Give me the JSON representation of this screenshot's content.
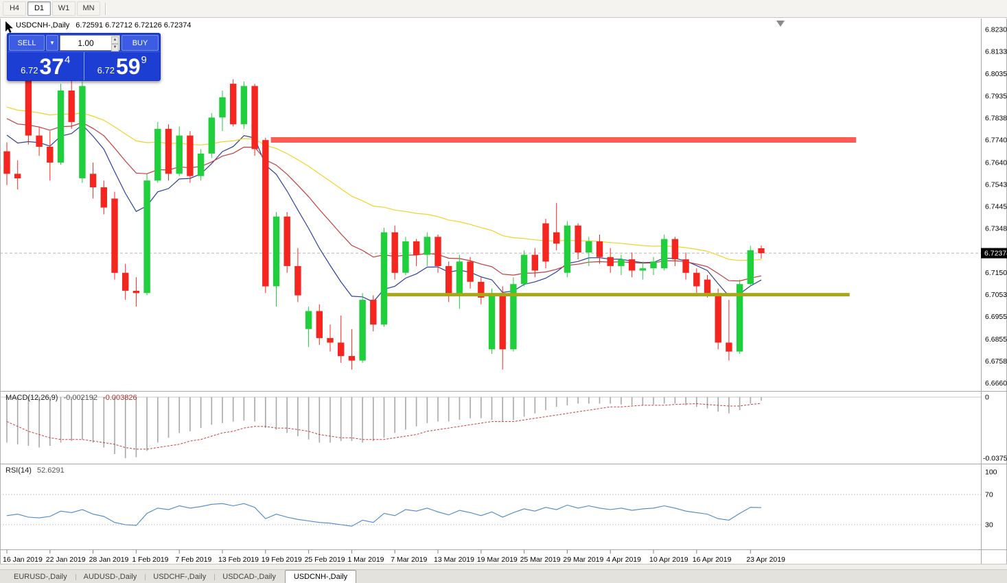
{
  "colors": {
    "bull": "#1fcf3c",
    "bear": "#f5261f",
    "ma_fast": "#2b3f9e",
    "ma_mid": "#c03a3a",
    "ma_slow": "#f0d327",
    "resistance": "#ff5b55",
    "support": "#a8a814",
    "macd_bar": "#a8a8a8",
    "macd_signal": "#cc3b3b",
    "rsi_line": "#4a86c8",
    "panel_blue": "#1d3ed2",
    "badge_bg": "#000000"
  },
  "toolbar": {
    "timeframes": [
      {
        "label": "H4",
        "active": false
      },
      {
        "label": "D1",
        "active": true
      },
      {
        "label": "W1",
        "active": false
      },
      {
        "label": "MN",
        "active": false
      }
    ]
  },
  "header": {
    "symbol": "USDCNH-,Daily",
    "ohlc_text": "6.72591 6.72712 6.72126 6.72374"
  },
  "trade_panel": {
    "sell_label": "SELL",
    "buy_label": "BUY",
    "volume": "1.00",
    "sell_price": {
      "prefix": "6.72",
      "main": "37",
      "pip": "4"
    },
    "buy_price": {
      "prefix": "6.72",
      "main": "59",
      "pip": "9"
    }
  },
  "bottom_tabs": [
    {
      "label": "EURUSD-,Daily",
      "active": false
    },
    {
      "label": "AUDUSD-,Daily",
      "active": false
    },
    {
      "label": "USDCHF-,Daily",
      "active": false
    },
    {
      "label": "USDCAD-,Daily",
      "active": false
    },
    {
      "label": "USDCNH-,Daily",
      "active": true
    }
  ],
  "chart_data": {
    "type": "candlestick",
    "symbol": "USDCNH-",
    "timeframe": "Daily",
    "title": "USDCNH-,Daily",
    "last_ohlc": {
      "open": 6.72591,
      "high": 6.72712,
      "low": 6.72126,
      "close": 6.72374
    },
    "current_price": 6.72374,
    "price_axis_current": "6.72374",
    "y_range": {
      "top": 6.828,
      "bottom": 6.6625
    },
    "price_axis_ticks": [
      "6.82305",
      "6.81330",
      "6.80350",
      "6.79355",
      "6.78380",
      "6.77405",
      "6.76405",
      "6.75430",
      "6.74455",
      "6.73480",
      "6.71505",
      "6.70530",
      "6.69555",
      "6.68555",
      "6.67580",
      "6.66605"
    ],
    "dates": [
      "2019-01-16",
      "2019-01-17",
      "2019-01-18",
      "2019-01-21",
      "2019-01-22",
      "2019-01-23",
      "2019-01-24",
      "2019-01-25",
      "2019-01-28",
      "2019-01-29",
      "2019-01-30",
      "2019-01-31",
      "2019-02-01",
      "2019-02-04",
      "2019-02-05",
      "2019-02-06",
      "2019-02-07",
      "2019-02-08",
      "2019-02-11",
      "2019-02-12",
      "2019-02-13",
      "2019-02-14",
      "2019-02-15",
      "2019-02-18",
      "2019-02-19",
      "2019-02-20",
      "2019-02-21",
      "2019-02-22",
      "2019-02-25",
      "2019-02-26",
      "2019-02-27",
      "2019-02-28",
      "2019-03-01",
      "2019-03-04",
      "2019-03-05",
      "2019-03-06",
      "2019-03-07",
      "2019-03-08",
      "2019-03-11",
      "2019-03-12",
      "2019-03-13",
      "2019-03-14",
      "2019-03-15",
      "2019-03-18",
      "2019-03-19",
      "2019-03-20",
      "2019-03-21",
      "2019-03-22",
      "2019-03-25",
      "2019-03-26",
      "2019-03-27",
      "2019-03-28",
      "2019-03-29",
      "2019-04-01",
      "2019-04-02",
      "2019-04-03",
      "2019-04-04",
      "2019-04-05",
      "2019-04-08",
      "2019-04-09",
      "2019-04-10",
      "2019-04-11",
      "2019-04-12",
      "2019-04-15",
      "2019-04-16",
      "2019-04-17",
      "2019-04-18",
      "2019-04-19",
      "2019-04-22",
      "2019-04-23",
      "2019-04-24"
    ],
    "candles": [
      [
        6.769,
        6.773,
        6.754,
        6.759
      ],
      [
        6.759,
        6.765,
        6.752,
        6.757
      ],
      [
        6.801,
        6.803,
        6.772,
        6.776
      ],
      [
        6.776,
        6.78,
        6.767,
        6.771
      ],
      [
        6.771,
        6.778,
        6.756,
        6.764
      ],
      [
        6.764,
        6.799,
        6.763,
        6.796
      ],
      [
        6.796,
        6.801,
        6.779,
        6.782
      ],
      [
        6.757,
        6.8,
        6.755,
        6.798
      ],
      [
        6.759,
        6.764,
        6.748,
        6.753
      ],
      [
        6.753,
        6.756,
        6.741,
        6.744
      ],
      [
        6.748,
        6.751,
        6.712,
        6.715
      ],
      [
        6.715,
        6.719,
        6.703,
        6.707
      ],
      [
        6.707,
        6.713,
        6.7,
        6.706
      ],
      [
        6.706,
        6.759,
        6.705,
        6.756
      ],
      [
        6.756,
        6.782,
        6.755,
        6.779
      ],
      [
        6.779,
        6.781,
        6.756,
        6.759
      ],
      [
        6.759,
        6.78,
        6.758,
        6.776
      ],
      [
        6.776,
        6.778,
        6.755,
        6.758
      ],
      [
        6.758,
        6.77,
        6.756,
        6.768
      ],
      [
        6.768,
        6.786,
        6.766,
        6.784
      ],
      [
        6.784,
        6.796,
        6.778,
        6.793
      ],
      [
        6.799,
        6.801,
        6.78,
        6.781
      ],
      [
        6.781,
        6.8,
        6.779,
        6.798
      ],
      [
        6.798,
        6.799,
        6.767,
        6.77
      ],
      [
        6.774,
        6.775,
        6.706,
        6.709
      ],
      [
        6.709,
        6.742,
        6.7,
        6.74
      ],
      [
        6.74,
        6.742,
        6.715,
        6.718
      ],
      [
        6.718,
        6.726,
        6.702,
        6.705
      ],
      [
        6.69,
        6.7,
        6.682,
        6.698
      ],
      [
        6.698,
        6.701,
        6.683,
        6.686
      ],
      [
        6.686,
        6.692,
        6.68,
        6.684
      ],
      [
        6.684,
        6.696,
        6.675,
        6.678
      ],
      [
        6.678,
        6.69,
        6.672,
        6.676
      ],
      [
        6.676,
        6.706,
        6.675,
        6.703
      ],
      [
        6.703,
        6.705,
        6.689,
        6.692
      ],
      [
        6.692,
        6.735,
        6.691,
        6.733
      ],
      [
        6.733,
        6.736,
        6.712,
        6.715
      ],
      [
        6.715,
        6.731,
        6.714,
        6.729
      ],
      [
        6.729,
        6.73,
        6.718,
        6.723
      ],
      [
        6.723,
        6.733,
        6.718,
        6.731
      ],
      [
        6.731,
        6.732,
        6.715,
        6.718
      ],
      [
        6.718,
        6.72,
        6.702,
        6.705
      ],
      [
        6.705,
        6.723,
        6.699,
        6.72
      ],
      [
        6.72,
        6.722,
        6.708,
        6.711
      ],
      [
        6.711,
        6.713,
        6.701,
        6.704
      ],
      [
        6.681,
        6.708,
        6.679,
        6.706
      ],
      [
        6.706,
        6.709,
        6.672,
        6.681
      ],
      [
        6.681,
        6.713,
        6.68,
        6.71
      ],
      [
        6.71,
        6.725,
        6.709,
        6.723
      ],
      [
        6.723,
        6.726,
        6.713,
        6.716
      ],
      [
        6.737,
        6.739,
        6.717,
        6.72
      ],
      [
        6.733,
        6.746,
        6.725,
        6.728
      ],
      [
        6.715,
        6.738,
        6.713,
        6.736
      ],
      [
        6.736,
        6.737,
        6.721,
        6.724
      ],
      [
        6.724,
        6.731,
        6.718,
        6.729
      ],
      [
        6.729,
        6.732,
        6.719,
        6.722
      ],
      [
        6.722,
        6.726,
        6.715,
        6.718
      ],
      [
        6.718,
        6.723,
        6.714,
        6.721
      ],
      [
        6.721,
        6.724,
        6.713,
        6.716
      ],
      [
        6.716,
        6.72,
        6.712,
        6.717
      ],
      [
        6.717,
        6.722,
        6.714,
        6.72
      ],
      [
        6.717,
        6.732,
        6.716,
        6.73
      ],
      [
        6.73,
        6.731,
        6.718,
        6.721
      ],
      [
        6.721,
        6.724,
        6.712,
        6.715
      ],
      [
        6.715,
        6.717,
        6.706,
        6.709
      ],
      [
        6.712,
        6.714,
        6.704,
        6.706
      ],
      [
        6.706,
        6.708,
        6.681,
        6.684
      ],
      [
        6.684,
        6.703,
        6.676,
        6.68
      ],
      [
        6.68,
        6.712,
        6.679,
        6.71
      ],
      [
        6.71,
        6.727,
        6.709,
        6.725
      ],
      [
        6.72591,
        6.72712,
        6.72126,
        6.72374
      ]
    ],
    "x_axis_labels": [
      {
        "index": 0,
        "label": "16 Jan 2019"
      },
      {
        "index": 4,
        "label": "22 Jan 2019"
      },
      {
        "index": 8,
        "label": "28 Jan 2019"
      },
      {
        "index": 12,
        "label": "1 Feb 2019"
      },
      {
        "index": 16,
        "label": "7 Feb 2019"
      },
      {
        "index": 20,
        "label": "13 Feb 2019"
      },
      {
        "index": 24,
        "label": "19 Feb 2019"
      },
      {
        "index": 28,
        "label": "25 Feb 2019"
      },
      {
        "index": 32,
        "label": "1 Mar 2019"
      },
      {
        "index": 36,
        "label": "7 Mar 2019"
      },
      {
        "index": 40,
        "label": "13 Mar 2019"
      },
      {
        "index": 44,
        "label": "19 Mar 2019"
      },
      {
        "index": 48,
        "label": "25 Mar 2019"
      },
      {
        "index": 52,
        "label": "29 Mar 2019"
      },
      {
        "index": 56,
        "label": "4 Apr 2019"
      },
      {
        "index": 60,
        "label": "10 Apr 2019"
      },
      {
        "index": 64,
        "label": "16 Apr 2019"
      },
      {
        "index": 69,
        "label": "23 Apr 2019"
      }
    ],
    "moving_averages": [
      {
        "name": "ma-fast-blue",
        "period": 10,
        "seed": 6.78,
        "color": "#2b3f9e"
      },
      {
        "name": "ma-mid-red",
        "period": 21,
        "seed": 6.786,
        "color": "#c03a3a"
      },
      {
        "name": "ma-slow-yellow",
        "period": 45,
        "seed": 6.79,
        "color": "#f0d327"
      }
    ],
    "hlines": [
      {
        "name": "resistance",
        "price": 6.77405,
        "from_index": 24.5,
        "to_index": 78.8,
        "color": "#ff5b55",
        "width": 8
      },
      {
        "name": "support",
        "price": 6.7053,
        "from_index": 35.3,
        "to_index": 78.2,
        "color": "#a8a814",
        "width": 5
      }
    ],
    "macd": {
      "name": "MACD(12,26,9)",
      "value": "-0.002192",
      "signal_value": "-0.003826",
      "axis_zero_label": "0",
      "axis_min_label": "-0.037529",
      "min": -0.037529,
      "hist": [
        -0.028,
        -0.029,
        -0.03,
        -0.031,
        -0.03,
        -0.028,
        -0.027,
        -0.026,
        -0.028,
        -0.031,
        -0.035,
        -0.0375,
        -0.037,
        -0.033,
        -0.028,
        -0.025,
        -0.022,
        -0.021,
        -0.019,
        -0.017,
        -0.016,
        -0.015,
        -0.0145,
        -0.015,
        -0.019,
        -0.02,
        -0.022,
        -0.024,
        -0.026,
        -0.028,
        -0.028,
        -0.027,
        -0.027,
        -0.028,
        -0.027,
        -0.025,
        -0.022,
        -0.02,
        -0.018,
        -0.016,
        -0.015,
        -0.015,
        -0.014,
        -0.013,
        -0.013,
        -0.014,
        -0.015,
        -0.014,
        -0.012,
        -0.01,
        -0.008,
        -0.006,
        -0.005,
        -0.004,
        -0.004,
        -0.004,
        -0.004,
        -0.0045,
        -0.005,
        -0.005,
        -0.0045,
        -0.004,
        -0.004,
        -0.005,
        -0.006,
        -0.007,
        -0.009,
        -0.01,
        -0.008,
        -0.004,
        -0.002192
      ],
      "signal": [
        -0.015,
        -0.018,
        -0.021,
        -0.023,
        -0.025,
        -0.026,
        -0.026,
        -0.026,
        -0.027,
        -0.028,
        -0.029,
        -0.031,
        -0.032,
        -0.032,
        -0.031,
        -0.03,
        -0.029,
        -0.027,
        -0.026,
        -0.024,
        -0.022,
        -0.021,
        -0.019,
        -0.018,
        -0.018,
        -0.019,
        -0.019,
        -0.02,
        -0.021,
        -0.023,
        -0.024,
        -0.025,
        -0.025,
        -0.026,
        -0.026,
        -0.026,
        -0.025,
        -0.024,
        -0.023,
        -0.021,
        -0.02,
        -0.019,
        -0.018,
        -0.017,
        -0.016,
        -0.015,
        -0.015,
        -0.015,
        -0.014,
        -0.013,
        -0.012,
        -0.011,
        -0.01,
        -0.009,
        -0.008,
        -0.007,
        -0.006,
        -0.006,
        -0.0055,
        -0.005,
        -0.005,
        -0.005,
        -0.0045,
        -0.0042,
        -0.004,
        -0.0045,
        -0.005,
        -0.0055,
        -0.0055,
        -0.0045,
        -0.003826
      ]
    },
    "rsi": {
      "name": "RSI(14)",
      "value": "52.6291",
      "levels": [
        100,
        70,
        30
      ],
      "series": [
        42,
        44,
        40,
        39,
        41,
        48,
        46,
        50,
        44,
        41,
        33,
        30,
        29,
        45,
        52,
        50,
        55,
        52,
        54,
        57,
        58,
        55,
        58,
        53,
        38,
        44,
        40,
        37,
        35,
        33,
        32,
        30,
        28,
        36,
        33,
        45,
        42,
        50,
        48,
        52,
        47,
        43,
        49,
        46,
        42,
        47,
        40,
        46,
        51,
        48,
        53,
        50,
        56,
        52,
        55,
        52,
        50,
        52,
        49,
        51,
        52,
        55,
        52,
        48,
        46,
        44,
        38,
        36,
        45,
        53,
        52.6291
      ]
    }
  }
}
